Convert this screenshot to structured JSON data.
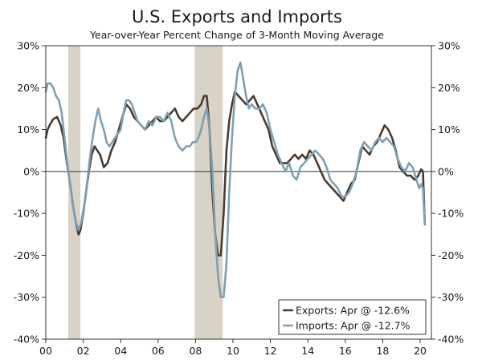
{
  "chart_data": {
    "type": "line",
    "title": "U.S. Exports and Imports",
    "subtitle": "Year-over-Year Percent Change of 3-Month Moving Average",
    "xlabel": "",
    "ylabel": "",
    "xlim": [
      2000.0,
      2020.6
    ],
    "ylim": [
      -40,
      30
    ],
    "y_ticks": [
      30,
      20,
      10,
      0,
      -10,
      -20,
      -30,
      -40
    ],
    "y_tick_labels_left": [
      "30%",
      "20%",
      "10%",
      "0%",
      "-10%",
      "-20%",
      "-30%",
      "-40%"
    ],
    "y_tick_labels_right": [
      "30%",
      "20%",
      "10%",
      "0%",
      "-10%",
      "-20%",
      "-30%",
      "-40%"
    ],
    "x_ticks": [
      2000,
      2002,
      2004,
      2006,
      2008,
      2010,
      2012,
      2014,
      2016,
      2018,
      2020
    ],
    "x_tick_labels": [
      "00",
      "02",
      "04",
      "06",
      "08",
      "10",
      "12",
      "14",
      "16",
      "18",
      "20"
    ],
    "recessions": [
      {
        "start": 2001.2,
        "end": 2001.85
      },
      {
        "start": 2007.95,
        "end": 2009.45
      }
    ],
    "legend_position": "bottom-right",
    "colors": {
      "exports": "#4a3b31",
      "imports": "#7f9fb4",
      "recession": "#d8d3c6",
      "axis": "#333333"
    },
    "series": [
      {
        "name": "Exports",
        "legend_label": "Exports: Apr @ -12.6%",
        "color": "#4a3b31",
        "x": [
          2000.0,
          2000.1,
          2000.2,
          2000.4,
          2000.6,
          2000.8,
          2000.95,
          2001.1,
          2001.3,
          2001.45,
          2001.6,
          2001.75,
          2001.85,
          2002.0,
          2002.15,
          2002.3,
          2002.45,
          2002.6,
          2002.75,
          2002.9,
          2003.1,
          2003.3,
          2003.5,
          2003.7,
          2003.9,
          2004.1,
          2004.3,
          2004.5,
          2004.7,
          2004.9,
          2005.1,
          2005.3,
          2005.5,
          2005.7,
          2005.9,
          2006.1,
          2006.3,
          2006.5,
          2006.7,
          2006.9,
          2007.1,
          2007.3,
          2007.5,
          2007.7,
          2007.9,
          2008.1,
          2008.3,
          2008.45,
          2008.6,
          2008.75,
          2008.9,
          2009.05,
          2009.2,
          2009.35,
          2009.5,
          2009.65,
          2009.8,
          2009.95,
          2010.1,
          2010.3,
          2010.5,
          2010.7,
          2010.9,
          2011.1,
          2011.3,
          2011.5,
          2011.7,
          2011.9,
          2012.1,
          2012.3,
          2012.5,
          2012.7,
          2012.9,
          2013.1,
          2013.3,
          2013.5,
          2013.7,
          2013.9,
          2014.1,
          2014.3,
          2014.5,
          2014.7,
          2014.9,
          2015.1,
          2015.3,
          2015.5,
          2015.7,
          2015.9,
          2016.1,
          2016.3,
          2016.5,
          2016.7,
          2016.9,
          2017.1,
          2017.3,
          2017.5,
          2017.7,
          2017.9,
          2018.1,
          2018.3,
          2018.5,
          2018.7,
          2018.9,
          2019.1,
          2019.3,
          2019.5,
          2019.7,
          2019.9,
          2020.05,
          2020.15,
          2020.25
        ],
        "values": [
          8,
          10,
          11,
          12.5,
          13,
          11,
          8,
          3,
          -3,
          -8,
          -12,
          -15,
          -14,
          -10,
          -5,
          0,
          4,
          6,
          5,
          4,
          1,
          2,
          5,
          7,
          10,
          13,
          16,
          15,
          13,
          12,
          11,
          10,
          11,
          12,
          13,
          12,
          12,
          13,
          14,
          15,
          13,
          12,
          13,
          14,
          15,
          15,
          16,
          18,
          18,
          10,
          -5,
          -15,
          -20,
          -20,
          -10,
          5,
          12,
          16,
          19,
          18,
          17,
          16,
          17,
          18,
          16,
          14,
          12,
          10,
          6,
          4,
          2,
          2,
          2,
          3,
          4,
          3,
          4,
          3,
          5,
          4,
          2,
          0,
          -2,
          -3,
          -4,
          -5,
          -6,
          -7,
          -5,
          -3,
          -2,
          2,
          6,
          5,
          4,
          6,
          7,
          9,
          11,
          10,
          8,
          5,
          1,
          0,
          -1,
          -1,
          -2,
          -1,
          0.5,
          0,
          -12.6
        ]
      },
      {
        "name": "Imports",
        "legend_label": "Imports: Apr @ -12.7%",
        "color": "#7f9fb4",
        "x": [
          2000.0,
          2000.1,
          2000.25,
          2000.4,
          2000.55,
          2000.7,
          2000.85,
          2001.0,
          2001.15,
          2001.3,
          2001.45,
          2001.6,
          2001.75,
          2001.9,
          2002.05,
          2002.2,
          2002.35,
          2002.5,
          2002.65,
          2002.8,
          2002.95,
          2003.1,
          2003.25,
          2003.4,
          2003.55,
          2003.7,
          2003.85,
          2004.0,
          2004.15,
          2004.3,
          2004.45,
          2004.6,
          2004.75,
          2004.9,
          2005.1,
          2005.3,
          2005.5,
          2005.7,
          2005.9,
          2006.1,
          2006.3,
          2006.5,
          2006.7,
          2006.9,
          2007.1,
          2007.3,
          2007.5,
          2007.7,
          2007.85,
          2008.0,
          2008.15,
          2008.3,
          2008.45,
          2008.6,
          2008.75,
          2008.9,
          2009.05,
          2009.2,
          2009.35,
          2009.5,
          2009.65,
          2009.8,
          2009.95,
          2010.1,
          2010.25,
          2010.4,
          2010.55,
          2010.7,
          2010.85,
          2011.0,
          2011.2,
          2011.4,
          2011.6,
          2011.8,
          2012.0,
          2012.2,
          2012.4,
          2012.6,
          2012.8,
          2013.0,
          2013.2,
          2013.4,
          2013.6,
          2013.8,
          2014.0,
          2014.2,
          2014.4,
          2014.6,
          2014.8,
          2015.0,
          2015.2,
          2015.4,
          2015.6,
          2015.8,
          2016.0,
          2016.2,
          2016.4,
          2016.6,
          2016.8,
          2017.0,
          2017.2,
          2017.4,
          2017.6,
          2017.8,
          2018.0,
          2018.2,
          2018.4,
          2018.6,
          2018.8,
          2019.0,
          2019.2,
          2019.4,
          2019.6,
          2019.8,
          2019.95,
          2020.05,
          2020.15,
          2020.25
        ],
        "values": [
          19,
          21,
          21,
          20,
          18,
          17,
          14,
          8,
          2,
          -3,
          -8,
          -12,
          -14,
          -12,
          -8,
          -3,
          3,
          8,
          12,
          15,
          12,
          10,
          7,
          6,
          7,
          8,
          9,
          10,
          14,
          17,
          17,
          16,
          14,
          12,
          11,
          10,
          12,
          11,
          13,
          13,
          12,
          14,
          12,
          8,
          6,
          5,
          6,
          6,
          7,
          7,
          8,
          10,
          13,
          15,
          10,
          0,
          -15,
          -25,
          -30,
          -30,
          -22,
          -5,
          8,
          18,
          24,
          26,
          22,
          18,
          15,
          16,
          15,
          15,
          16,
          14,
          10,
          7,
          4,
          2,
          0,
          2,
          -1,
          -2,
          1,
          2,
          3,
          4,
          5,
          4,
          3,
          1,
          -2,
          -3,
          -4,
          -6,
          -6,
          -5,
          -3,
          0,
          5,
          7,
          6,
          5,
          7,
          8,
          7,
          8,
          7,
          6,
          3,
          1,
          0,
          2,
          1,
          -2,
          -4,
          -3,
          -4,
          -12.7
        ]
      }
    ]
  }
}
